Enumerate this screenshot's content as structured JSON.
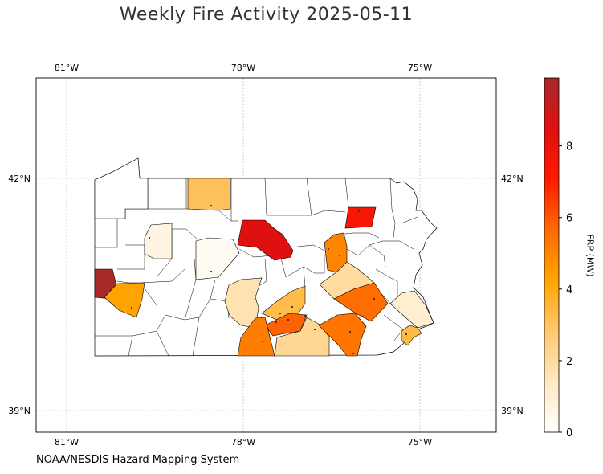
{
  "title": "Weekly Fire Activity 2025-05-11",
  "credit": "NOAA/NESDIS Hazard Mapping System",
  "colorbar": {
    "label": "FRP (MW)",
    "ticks": [
      "0",
      "2",
      "4",
      "6",
      "8"
    ],
    "min": 0,
    "max": 9.9,
    "colors": [
      "#ffffff",
      "#ffe9c2",
      "#ffc870",
      "#ffa500",
      "#ff6a00",
      "#ff1a00",
      "#e01010",
      "#a52a2a"
    ]
  },
  "map": {
    "lon_labels": [
      "81°W",
      "78°W",
      "75°W"
    ],
    "lat_labels": [
      "42°N",
      "39°N"
    ],
    "lon_range": [
      -81.5,
      -73.7
    ],
    "lat_range": [
      38.75,
      43.3
    ],
    "fire_counties": [
      {
        "id": "erie-area",
        "frp": 0
      },
      {
        "id": "mckean",
        "frp": 3.1
      },
      {
        "id": "elk-cameron",
        "frp": 8.5
      },
      {
        "id": "bradford-susquehanna",
        "frp": 7.5
      },
      {
        "id": "luzerne",
        "frp": 5.0
      },
      {
        "id": "beaver",
        "frp": 9.8
      },
      {
        "id": "allegheny-west",
        "frp": 4.3
      },
      {
        "id": "venango",
        "frp": 0.7
      },
      {
        "id": "clearfield",
        "frp": 0.3
      },
      {
        "id": "huntingdon",
        "frp": 1.7
      },
      {
        "id": "perry-juniata",
        "frp": 3.3
      },
      {
        "id": "cumberland",
        "frp": 5.8
      },
      {
        "id": "franklin",
        "frp": 5.2
      },
      {
        "id": "adams-york",
        "frp": 2.2
      },
      {
        "id": "lancaster",
        "frp": 5.4
      },
      {
        "id": "berks",
        "frp": 5.6
      },
      {
        "id": "schuylkill",
        "frp": 2.0
      },
      {
        "id": "montgomery",
        "frp": 1.1
      },
      {
        "id": "delaware-chester",
        "frp": 3.4
      }
    ]
  }
}
